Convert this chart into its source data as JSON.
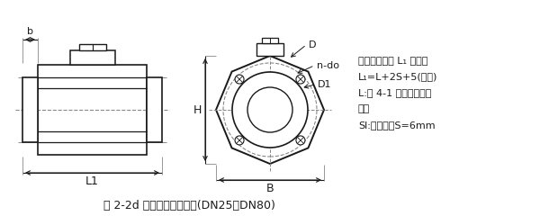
{
  "title": "图 2-2d 一体型电磁流量计(DN25～DN80)",
  "note_lines": [
    "注：仪表长度 L₁ 含衬里",
    "L₁=L+2S+5(允差)",
    "L:表 4-1 中仪表理论长",
    "度。",
    "Sl:接地环，S=6mm"
  ],
  "label_D": "D",
  "label_ndo": "n-do",
  "label_D1": "D1",
  "label_H": "H",
  "label_B": "B",
  "label_b": "b",
  "label_L1": "L1",
  "bg_color": "#ffffff",
  "line_color": "#1a1a1a",
  "dash_color": "#888888",
  "figsize": [
    6.0,
    2.4
  ],
  "dpi": 100
}
